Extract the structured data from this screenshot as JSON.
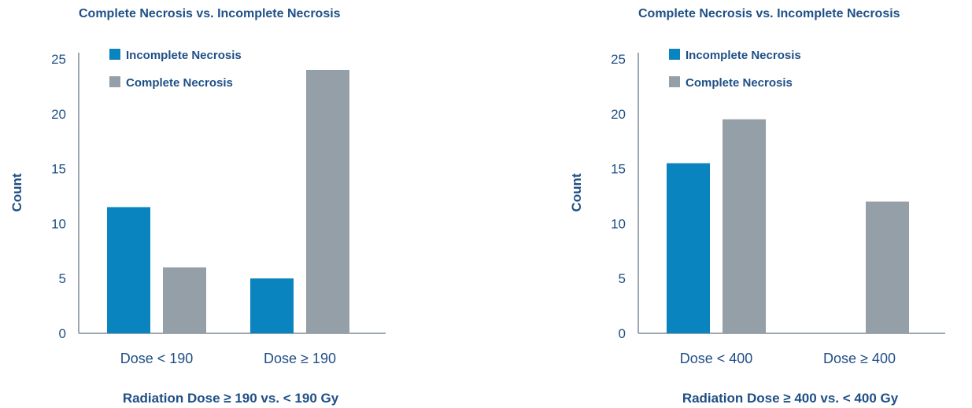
{
  "colors": {
    "incomplete": "#0a84bf",
    "complete": "#949fa8",
    "text": "#1f4f86"
  },
  "chart_data": [
    {
      "type": "bar",
      "title": "Complete Necrosis vs. Incomplete Necrosis",
      "xlabel": "Radiation Dose ≥ 190 vs. < 190 Gy",
      "ylabel": "Count",
      "ylim": [
        0,
        25
      ],
      "yticks": [
        0,
        5,
        10,
        15,
        20,
        25
      ],
      "categories": [
        "Dose < 190",
        "Dose ≥ 190"
      ],
      "legend_position": "top-left",
      "grid": false,
      "series": [
        {
          "name": "Incomplete Necrosis",
          "color": "#0a84bf",
          "values": [
            11.5,
            5
          ]
        },
        {
          "name": "Complete Necrosis",
          "color": "#949fa8",
          "values": [
            6,
            24
          ]
        }
      ]
    },
    {
      "type": "bar",
      "title": "Complete Necrosis vs. Incomplete Necrosis",
      "xlabel": "Radiation Dose ≥ 400 vs. < 400 Gy",
      "ylabel": "Count",
      "ylim": [
        0,
        25
      ],
      "yticks": [
        0,
        5,
        10,
        15,
        20,
        25
      ],
      "categories": [
        "Dose < 400",
        "Dose ≥ 400"
      ],
      "legend_position": "top-left",
      "grid": false,
      "series": [
        {
          "name": "Incomplete Necrosis",
          "color": "#0a84bf",
          "values": [
            15.5,
            0
          ]
        },
        {
          "name": "Complete Necrosis",
          "color": "#949fa8",
          "values": [
            19.5,
            12
          ]
        }
      ]
    }
  ]
}
